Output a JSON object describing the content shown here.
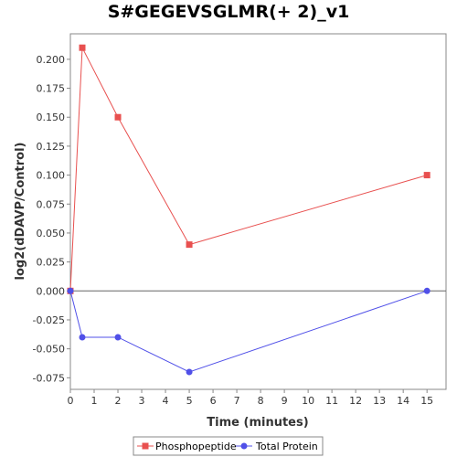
{
  "chart_data": {
    "type": "line",
    "title": "S#GEGEVSGLMR(+ 2)_v1",
    "xlabel": "Time (minutes)",
    "ylabel": "log2(dDAVP/Control)",
    "xlim": [
      0,
      15.8
    ],
    "ylim": [
      -0.085,
      0.222
    ],
    "x_ticks": [
      0,
      1,
      2,
      3,
      4,
      5,
      6,
      7,
      8,
      9,
      10,
      11,
      12,
      13,
      14,
      15
    ],
    "y_ticks": [
      -0.075,
      -0.05,
      -0.025,
      0.0,
      0.025,
      0.05,
      0.075,
      0.1,
      0.125,
      0.15,
      0.175,
      0.2
    ],
    "y_tick_labels": [
      "-0.075",
      "-0.050",
      "-0.025",
      "0.000",
      "0.025",
      "0.050",
      "0.075",
      "0.100",
      "0.125",
      "0.150",
      "0.175",
      "0.200"
    ],
    "zero_line": true,
    "grid": false,
    "legend_position": "bottom",
    "series": [
      {
        "name": "Phosphopeptide",
        "color": "#e8504f",
        "marker": "square",
        "x": [
          0,
          0.5,
          2,
          5,
          15
        ],
        "y": [
          0.0,
          0.21,
          0.15,
          0.04,
          0.1
        ]
      },
      {
        "name": "Total Protein",
        "color": "#5050e8",
        "marker": "circle",
        "x": [
          0,
          0.5,
          2,
          5,
          15
        ],
        "y": [
          0.0,
          -0.04,
          -0.04,
          -0.07,
          0.0
        ]
      }
    ]
  }
}
